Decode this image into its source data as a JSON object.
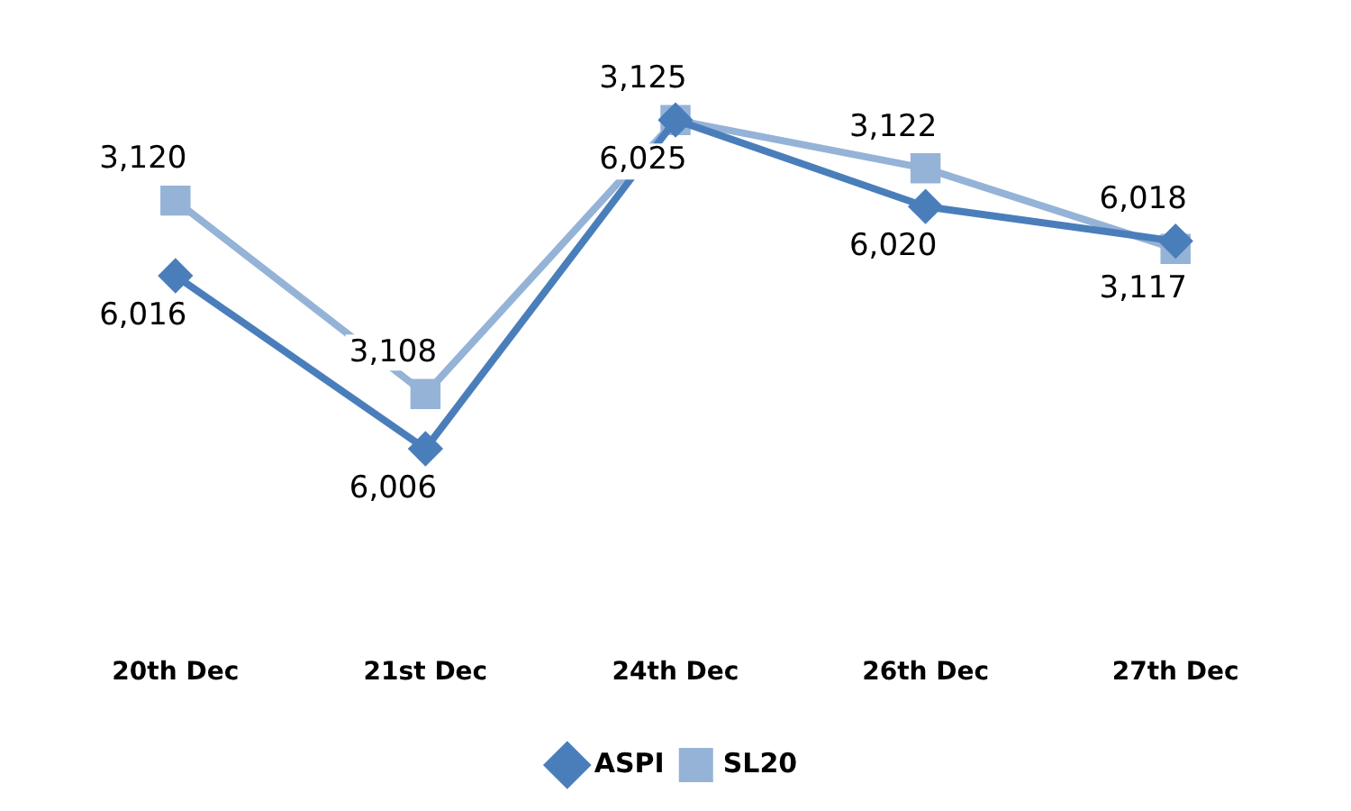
{
  "chart_data": {
    "type": "line",
    "categories": [
      "20th Dec",
      "21st Dec",
      "24th Dec",
      "26th Dec",
      "27th Dec"
    ],
    "series": [
      {
        "name": "ASPI",
        "color": "#4a7ebb",
        "values": [
          6016,
          6006,
          6025,
          6020,
          6018
        ],
        "value_labels": [
          "6,016",
          "6,006",
          "6,025",
          "6,020",
          "6,018"
        ],
        "marker": "diamond"
      },
      {
        "name": "SL20",
        "color": "#95b3d7",
        "values": [
          3120,
          3108,
          3125,
          3122,
          3117
        ],
        "value_labels": [
          "3,120",
          "3,108",
          "3,125",
          "3,122",
          "3,117"
        ],
        "marker": "square",
        "axis": "y2"
      }
    ],
    "legend": "bottom",
    "grid": false
  }
}
